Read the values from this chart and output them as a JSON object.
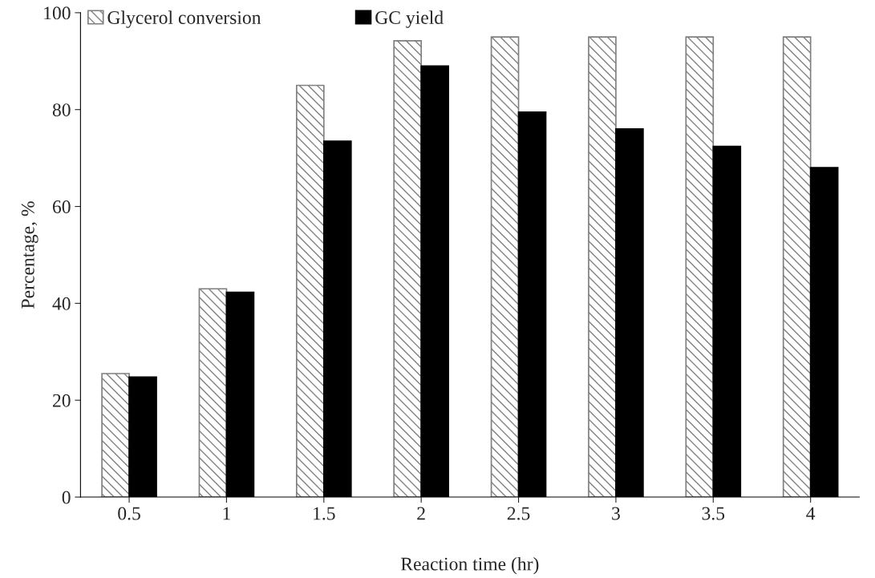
{
  "chart_data": {
    "type": "bar",
    "xlabel": "Reaction time (hr)",
    "ylabel": "Percentage, %",
    "categories": [
      "0.5",
      "1",
      "1.5",
      "2",
      "2.5",
      "3",
      "3.5",
      "4"
    ],
    "series": [
      {
        "name": "Glycerol conversion",
        "color": "#7f7f7f",
        "values": [
          25.5,
          43,
          85,
          94.2,
          95,
          95,
          95,
          95
        ]
      },
      {
        "name": "GC yield",
        "color": "#000000",
        "values": [
          24.8,
          42.3,
          73.5,
          89,
          79.5,
          76,
          72.4,
          68
        ]
      }
    ],
    "ylim": [
      0,
      100
    ],
    "yticks": [
      0,
      20,
      40,
      60,
      80,
      100
    ],
    "grid": false,
    "legend": "top left"
  }
}
